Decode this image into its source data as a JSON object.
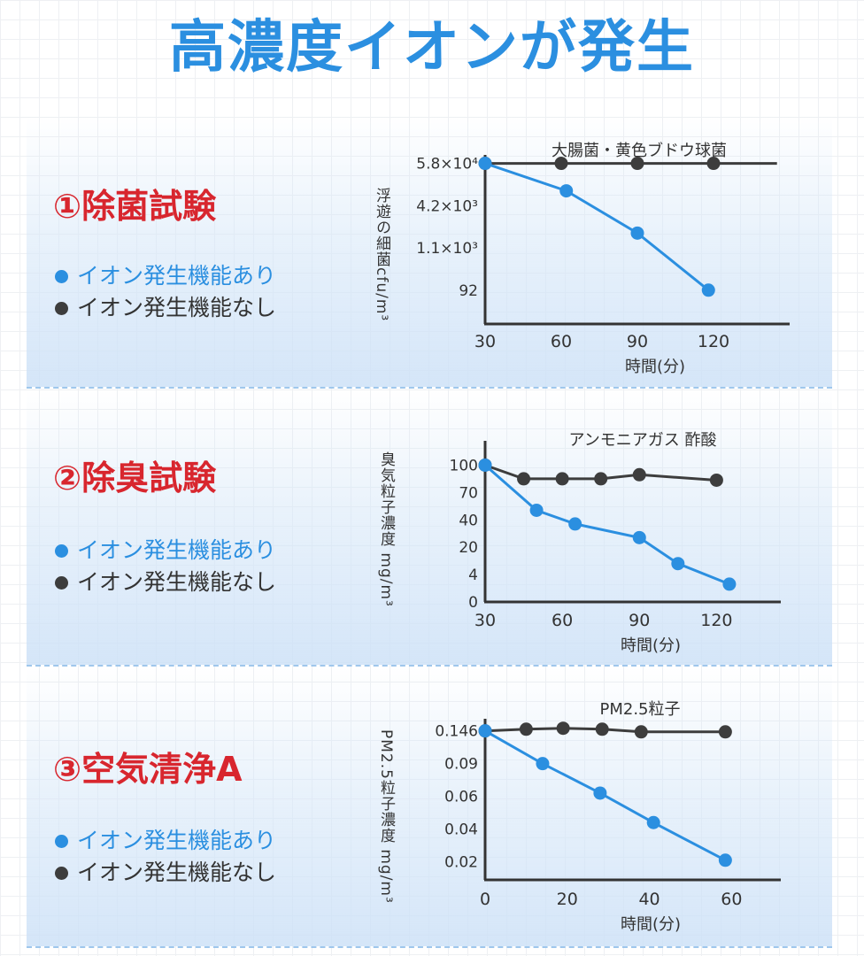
{
  "page": {
    "title": "高濃度イオンが発生"
  },
  "legend": {
    "on_label": "イオン発生機能あり",
    "off_label": "イオン発生機能なし"
  },
  "colors": {
    "title": "#2b8fe0",
    "heading": "#d8262e",
    "ion_on": "#2b8fe0",
    "ion_off": "#3d3d3d",
    "axis": "#333333"
  },
  "panels": [
    {
      "heading": "①除菌試験",
      "chart_index": 0
    },
    {
      "heading": "②除臭試験",
      "chart_index": 1
    },
    {
      "heading": "③空気清浄A",
      "chart_index": 2
    }
  ],
  "chart_data": [
    {
      "type": "line",
      "title": "大腸菌・黄色ブドウ球菌",
      "ylabel": "浮遊の細菌cfu/m³",
      "xlabel": "時間(分)",
      "y_scale": "categorical",
      "x_ticks": [
        30,
        60,
        90,
        120
      ],
      "x_range": [
        30,
        150
      ],
      "y_ticks": [
        {
          "label": "5.8×10⁴",
          "level": 3
        },
        {
          "label": "4.2×10³",
          "level": 2
        },
        {
          "label": "1.1×10³",
          "level": 1
        },
        {
          "label": "92",
          "level": 0
        }
      ],
      "y_range": [
        -0.8,
        3.2
      ],
      "series": [
        {
          "key": "ion_off",
          "points": [
            [
              30,
              3
            ],
            [
              60,
              3
            ],
            [
              90,
              3
            ],
            [
              120,
              3
            ]
          ],
          "extend_to": 145
        },
        {
          "key": "ion_on",
          "points": [
            [
              30,
              3
            ],
            [
              62,
              2.35
            ],
            [
              90,
              1.35
            ],
            [
              118,
              0
            ]
          ]
        }
      ]
    },
    {
      "type": "line",
      "title": "アンモニアガス  酢酸",
      "ylabel": "臭気粒子濃度 mg/m³",
      "xlabel": "時間(分)",
      "y_scale": "categorical",
      "x_ticks": [
        30,
        60,
        90,
        120
      ],
      "x_range": [
        30,
        145
      ],
      "y_ticks": [
        {
          "label": "100",
          "level": 5
        },
        {
          "label": "70",
          "level": 4
        },
        {
          "label": "40",
          "level": 3
        },
        {
          "label": "20",
          "level": 2
        },
        {
          "label": "4",
          "level": 1
        },
        {
          "label": "0",
          "level": 0
        }
      ],
      "y_range": [
        0,
        5.5
      ],
      "series": [
        {
          "key": "ion_off",
          "points": [
            [
              30,
              5
            ],
            [
              45,
              4.5
            ],
            [
              60,
              4.5
            ],
            [
              75,
              4.5
            ],
            [
              90,
              4.65
            ],
            [
              120,
              4.45
            ]
          ]
        },
        {
          "key": "ion_on",
          "points": [
            [
              30,
              5
            ],
            [
              50,
              3.35
            ],
            [
              65,
              2.85
            ],
            [
              90,
              2.35
            ],
            [
              105,
              1.4
            ],
            [
              125,
              0.65
            ]
          ]
        }
      ]
    },
    {
      "type": "line",
      "title": "PM2.5粒子",
      "ylabel": "PM2.5粒子濃度 mg/m³",
      "xlabel": "時間(分)",
      "y_scale": "categorical",
      "x_ticks": [
        0,
        20,
        40,
        60
      ],
      "x_range": [
        0,
        72
      ],
      "y_ticks": [
        {
          "label": "0.146",
          "level": 5
        },
        {
          "label": "0.09",
          "level": 4
        },
        {
          "label": "0.06",
          "level": 3
        },
        {
          "label": "0.04",
          "level": 2
        },
        {
          "label": "0.02",
          "level": 1
        }
      ],
      "y_range": [
        0.45,
        5.45
      ],
      "series": [
        {
          "key": "ion_off",
          "points": [
            [
              0,
              5
            ],
            [
              10,
              5.05
            ],
            [
              19,
              5.08
            ],
            [
              28.5,
              5.05
            ],
            [
              38,
              4.97
            ],
            [
              58.5,
              4.97
            ]
          ]
        },
        {
          "key": "ion_on",
          "points": [
            [
              0,
              5
            ],
            [
              14,
              4.0
            ],
            [
              28,
              3.1
            ],
            [
              41,
              2.2
            ],
            [
              58.5,
              1.05
            ]
          ]
        }
      ]
    }
  ]
}
